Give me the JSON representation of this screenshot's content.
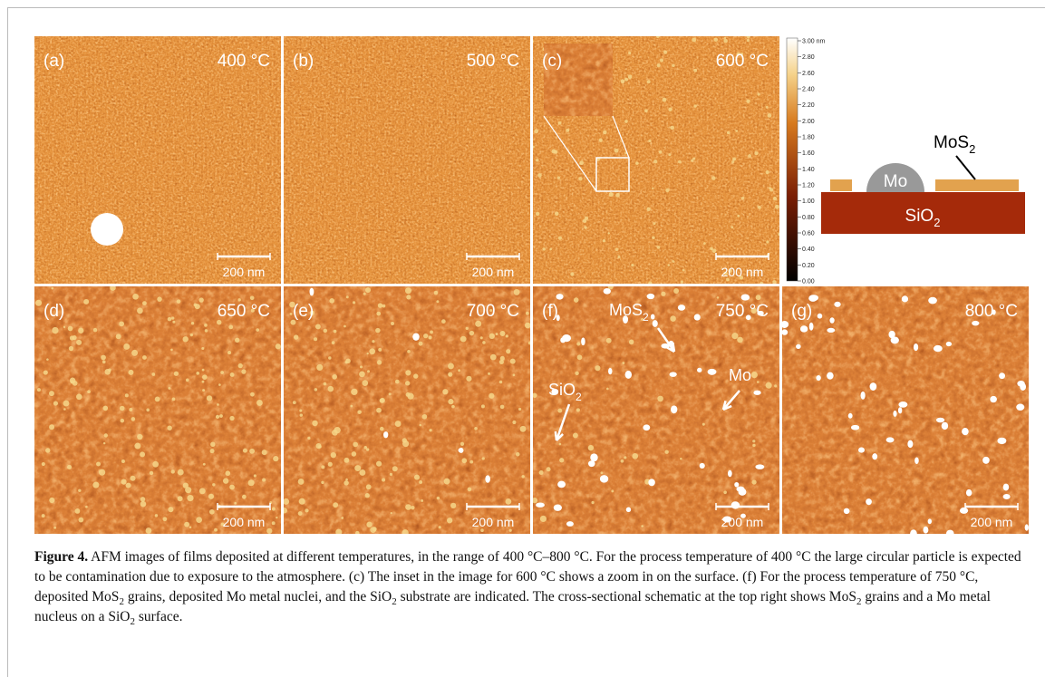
{
  "figure": {
    "panels": [
      {
        "label": "(a)",
        "temperature": "400 °C",
        "scale": "200 nm"
      },
      {
        "label": "(b)",
        "temperature": "500 °C",
        "scale": "200 nm"
      },
      {
        "label": "(c)",
        "temperature": "600 °C",
        "scale": "200 nm"
      },
      {
        "label": "(d)",
        "temperature": "650 °C",
        "scale": "200 nm"
      },
      {
        "label": "(e)",
        "temperature": "700 °C",
        "scale": "200 nm"
      },
      {
        "label": "(f)",
        "temperature": "750 °C",
        "scale": "200 nm"
      },
      {
        "label": "(g)",
        "temperature": "800 °C",
        "scale": "200 nm"
      }
    ],
    "colorbar": {
      "ticks": [
        "3.00 nm",
        "2.80",
        "2.60",
        "2.40",
        "2.20",
        "2.00",
        "1.80",
        "1.60",
        "1.40",
        "1.20",
        "1.00",
        "0.80",
        "0.60",
        "0.40",
        "0.20",
        "0.00"
      ]
    },
    "schematic": {
      "mos2": {
        "text": "MoS",
        "sub": "2"
      },
      "mo": "Mo",
      "sio2": {
        "text": "SiO",
        "sub": "2"
      }
    },
    "annotations": {
      "mos2": {
        "text": "MoS",
        "sub": "2"
      },
      "mo": "Mo",
      "sio2": {
        "text": "SiO",
        "sub": "2"
      }
    }
  },
  "caption": {
    "label": "Figure 4.",
    "segments": [
      " AFM images of films deposited at different temperatures, in the range of 400 °C–800 °C. For the process temperature of 400 °C the large circular particle is expected to be contamination due to exposure to the atmosphere. (c) The inset in the image for 600 °C shows a zoom in on the surface. (f) For the process temperature of 750 °C, deposited MoS",
      {
        "sub": "2"
      },
      " grains, deposited Mo metal nuclei, and the SiO",
      {
        "sub": "2"
      },
      " substrate are indicated. The cross-sectional schematic at the top right shows MoS",
      {
        "sub": "2"
      },
      " grains and a Mo metal nucleus on a SiO",
      {
        "sub": "2"
      },
      " surface."
    ]
  }
}
